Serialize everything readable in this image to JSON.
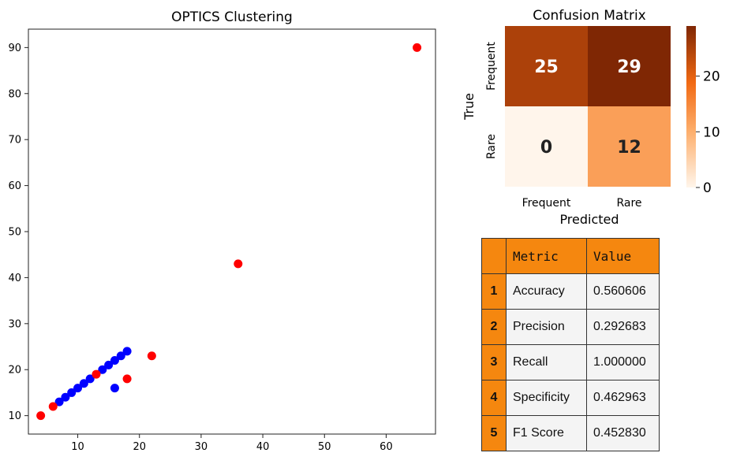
{
  "chart_data": [
    {
      "type": "scatter",
      "title": "OPTICS Clustering",
      "xlim": [
        2,
        68
      ],
      "ylim": [
        6,
        94
      ],
      "xticks": [
        10,
        20,
        30,
        40,
        50,
        60
      ],
      "yticks": [
        10,
        20,
        30,
        40,
        50,
        60,
        70,
        80,
        90
      ],
      "series": [
        {
          "color": "#0000ff",
          "points": [
            [
              7,
              13
            ],
            [
              8,
              14
            ],
            [
              9,
              15
            ],
            [
              10,
              16
            ],
            [
              11,
              17
            ],
            [
              12,
              18
            ],
            [
              14,
              20
            ],
            [
              15,
              21
            ],
            [
              16,
              22
            ],
            [
              17,
              23
            ],
            [
              18,
              24
            ],
            [
              16,
              16
            ]
          ]
        },
        {
          "color": "#ff0000",
          "points": [
            [
              4,
              10
            ],
            [
              6,
              12
            ],
            [
              13,
              19
            ],
            [
              18,
              18
            ],
            [
              22,
              23
            ],
            [
              36,
              43
            ],
            [
              65,
              90
            ]
          ]
        }
      ]
    },
    {
      "type": "heatmap",
      "title": "Confusion Matrix",
      "xlabel": "Predicted",
      "ylabel": "True",
      "x_categories": [
        "Frequent",
        "Rare"
      ],
      "y_categories": [
        "Frequent",
        "Rare"
      ],
      "values": [
        [
          25,
          29
        ],
        [
          0,
          12
        ]
      ],
      "colorbar": {
        "min": 0,
        "max": 29,
        "ticks": [
          0,
          10,
          20
        ],
        "colors": [
          "#fff5eb",
          "#fdae6b",
          "#f16913",
          "#7f2704"
        ]
      }
    },
    {
      "type": "table",
      "columns": [
        "Metric",
        "Value"
      ],
      "rows": [
        {
          "idx": "1",
          "metric": "Accuracy",
          "value": "0.560606"
        },
        {
          "idx": "2",
          "metric": "Precision",
          "value": "0.292683"
        },
        {
          "idx": "3",
          "metric": "Recall",
          "value": "1.000000"
        },
        {
          "idx": "4",
          "metric": "Specificity",
          "value": "0.462963"
        },
        {
          "idx": "5",
          "metric": "F1 Score",
          "value": "0.452830"
        }
      ]
    }
  ]
}
